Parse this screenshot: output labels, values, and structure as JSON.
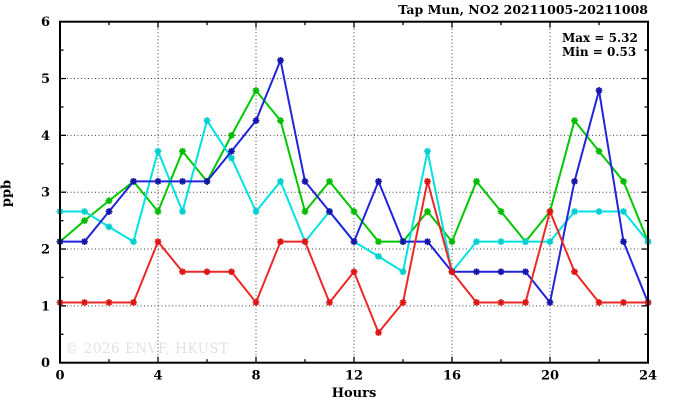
{
  "chart_data": {
    "type": "line",
    "title": "Tap Mun, NO2 20211005-20211008",
    "xlabel": "Hours",
    "ylabel": "ppb",
    "xlim": [
      0,
      24
    ],
    "ylim": [
      0,
      6
    ],
    "x_ticks": [
      0,
      4,
      8,
      12,
      16,
      20,
      24
    ],
    "y_ticks": [
      0,
      1,
      2,
      3,
      4,
      5,
      6
    ],
    "x_minor_step": 2,
    "y_minor_step": 0.5,
    "grid": "dotted-at-major-ticks",
    "legend_position": "none",
    "annotations": {
      "max_label": "Max = 5.32",
      "min_label": "Min = 0.53"
    },
    "watermark": "© 2026 ENVF, HKUST",
    "x": [
      0,
      1,
      2,
      3,
      4,
      5,
      6,
      7,
      8,
      9,
      10,
      11,
      12,
      13,
      14,
      15,
      16,
      17,
      18,
      19,
      20,
      21,
      22,
      23,
      24
    ],
    "series": [
      {
        "name": "green",
        "color": "#00c800",
        "marker_color": "#00bb00",
        "values": [
          2.13,
          2.5,
          2.85,
          3.19,
          2.66,
          3.72,
          3.19,
          4.0,
          4.79,
          4.26,
          2.66,
          3.19,
          2.66,
          2.13,
          2.13,
          2.66,
          2.13,
          3.19,
          2.66,
          2.13,
          2.66,
          4.26,
          3.72,
          3.19,
          2.13
        ]
      },
      {
        "name": "cyan",
        "color": "#00e2e2",
        "marker_color": "#00cfcf",
        "values": [
          2.66,
          2.66,
          2.39,
          2.13,
          3.72,
          2.66,
          4.26,
          3.6,
          2.66,
          3.19,
          2.13,
          2.66,
          2.13,
          1.87,
          1.6,
          3.72,
          1.6,
          2.13,
          2.13,
          2.13,
          2.13,
          2.66,
          2.66,
          2.66,
          2.13
        ]
      },
      {
        "name": "blue",
        "color": "#2323dd",
        "marker_color": "#1414a8",
        "values": [
          2.13,
          2.13,
          2.66,
          3.19,
          3.19,
          3.19,
          3.19,
          3.72,
          4.26,
          5.32,
          3.19,
          2.66,
          2.13,
          3.19,
          2.13,
          2.13,
          1.6,
          1.6,
          1.6,
          1.6,
          1.06,
          3.19,
          4.79,
          2.13,
          1.06
        ]
      },
      {
        "name": "red",
        "color": "#ee2828",
        "marker_color": "#dd1515",
        "values": [
          1.06,
          1.06,
          1.06,
          1.06,
          2.13,
          1.6,
          1.6,
          1.6,
          1.06,
          2.13,
          2.13,
          1.06,
          1.6,
          0.53,
          1.06,
          3.19,
          1.6,
          1.06,
          1.06,
          1.06,
          2.66,
          1.6,
          1.06,
          1.06,
          1.06
        ]
      }
    ],
    "axis_color": "#000000",
    "grid_color": "#3c3c3c"
  }
}
